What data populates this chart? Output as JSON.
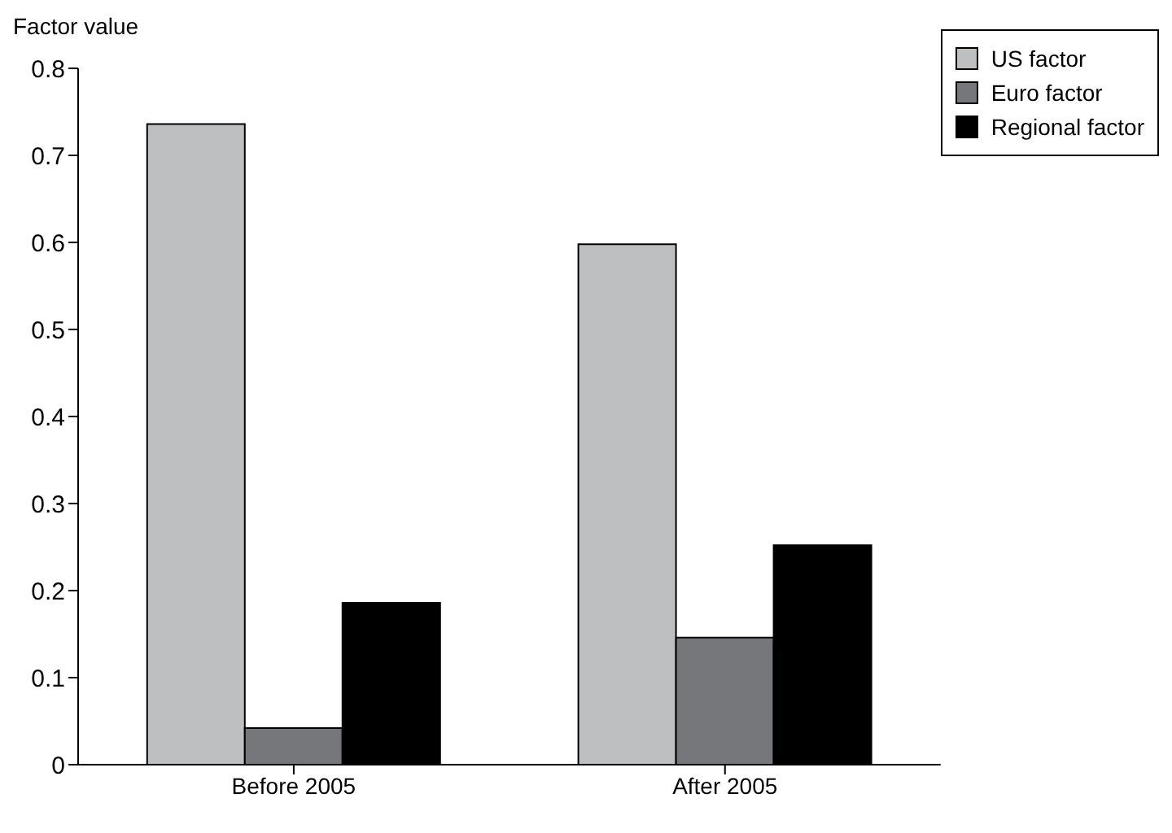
{
  "chart_data": {
    "type": "bar",
    "ylabel": "Factor value",
    "categories": [
      "Before 2005",
      "After 2005"
    ],
    "series": [
      {
        "name": "US factor",
        "color": "#bebfc1",
        "values": [
          0.736,
          0.598
        ]
      },
      {
        "name": "Euro factor",
        "color": "#76777b",
        "values": [
          0.042,
          0.146
        ]
      },
      {
        "name": "Regional factor",
        "color": "#000000",
        "values": [
          0.186,
          0.252
        ]
      }
    ],
    "ylim": [
      0,
      0.8
    ],
    "yticks": [
      0,
      0.1,
      0.2,
      0.3,
      0.4,
      0.5,
      0.6,
      0.7,
      0.8
    ],
    "grid": false,
    "legend": "top right"
  }
}
